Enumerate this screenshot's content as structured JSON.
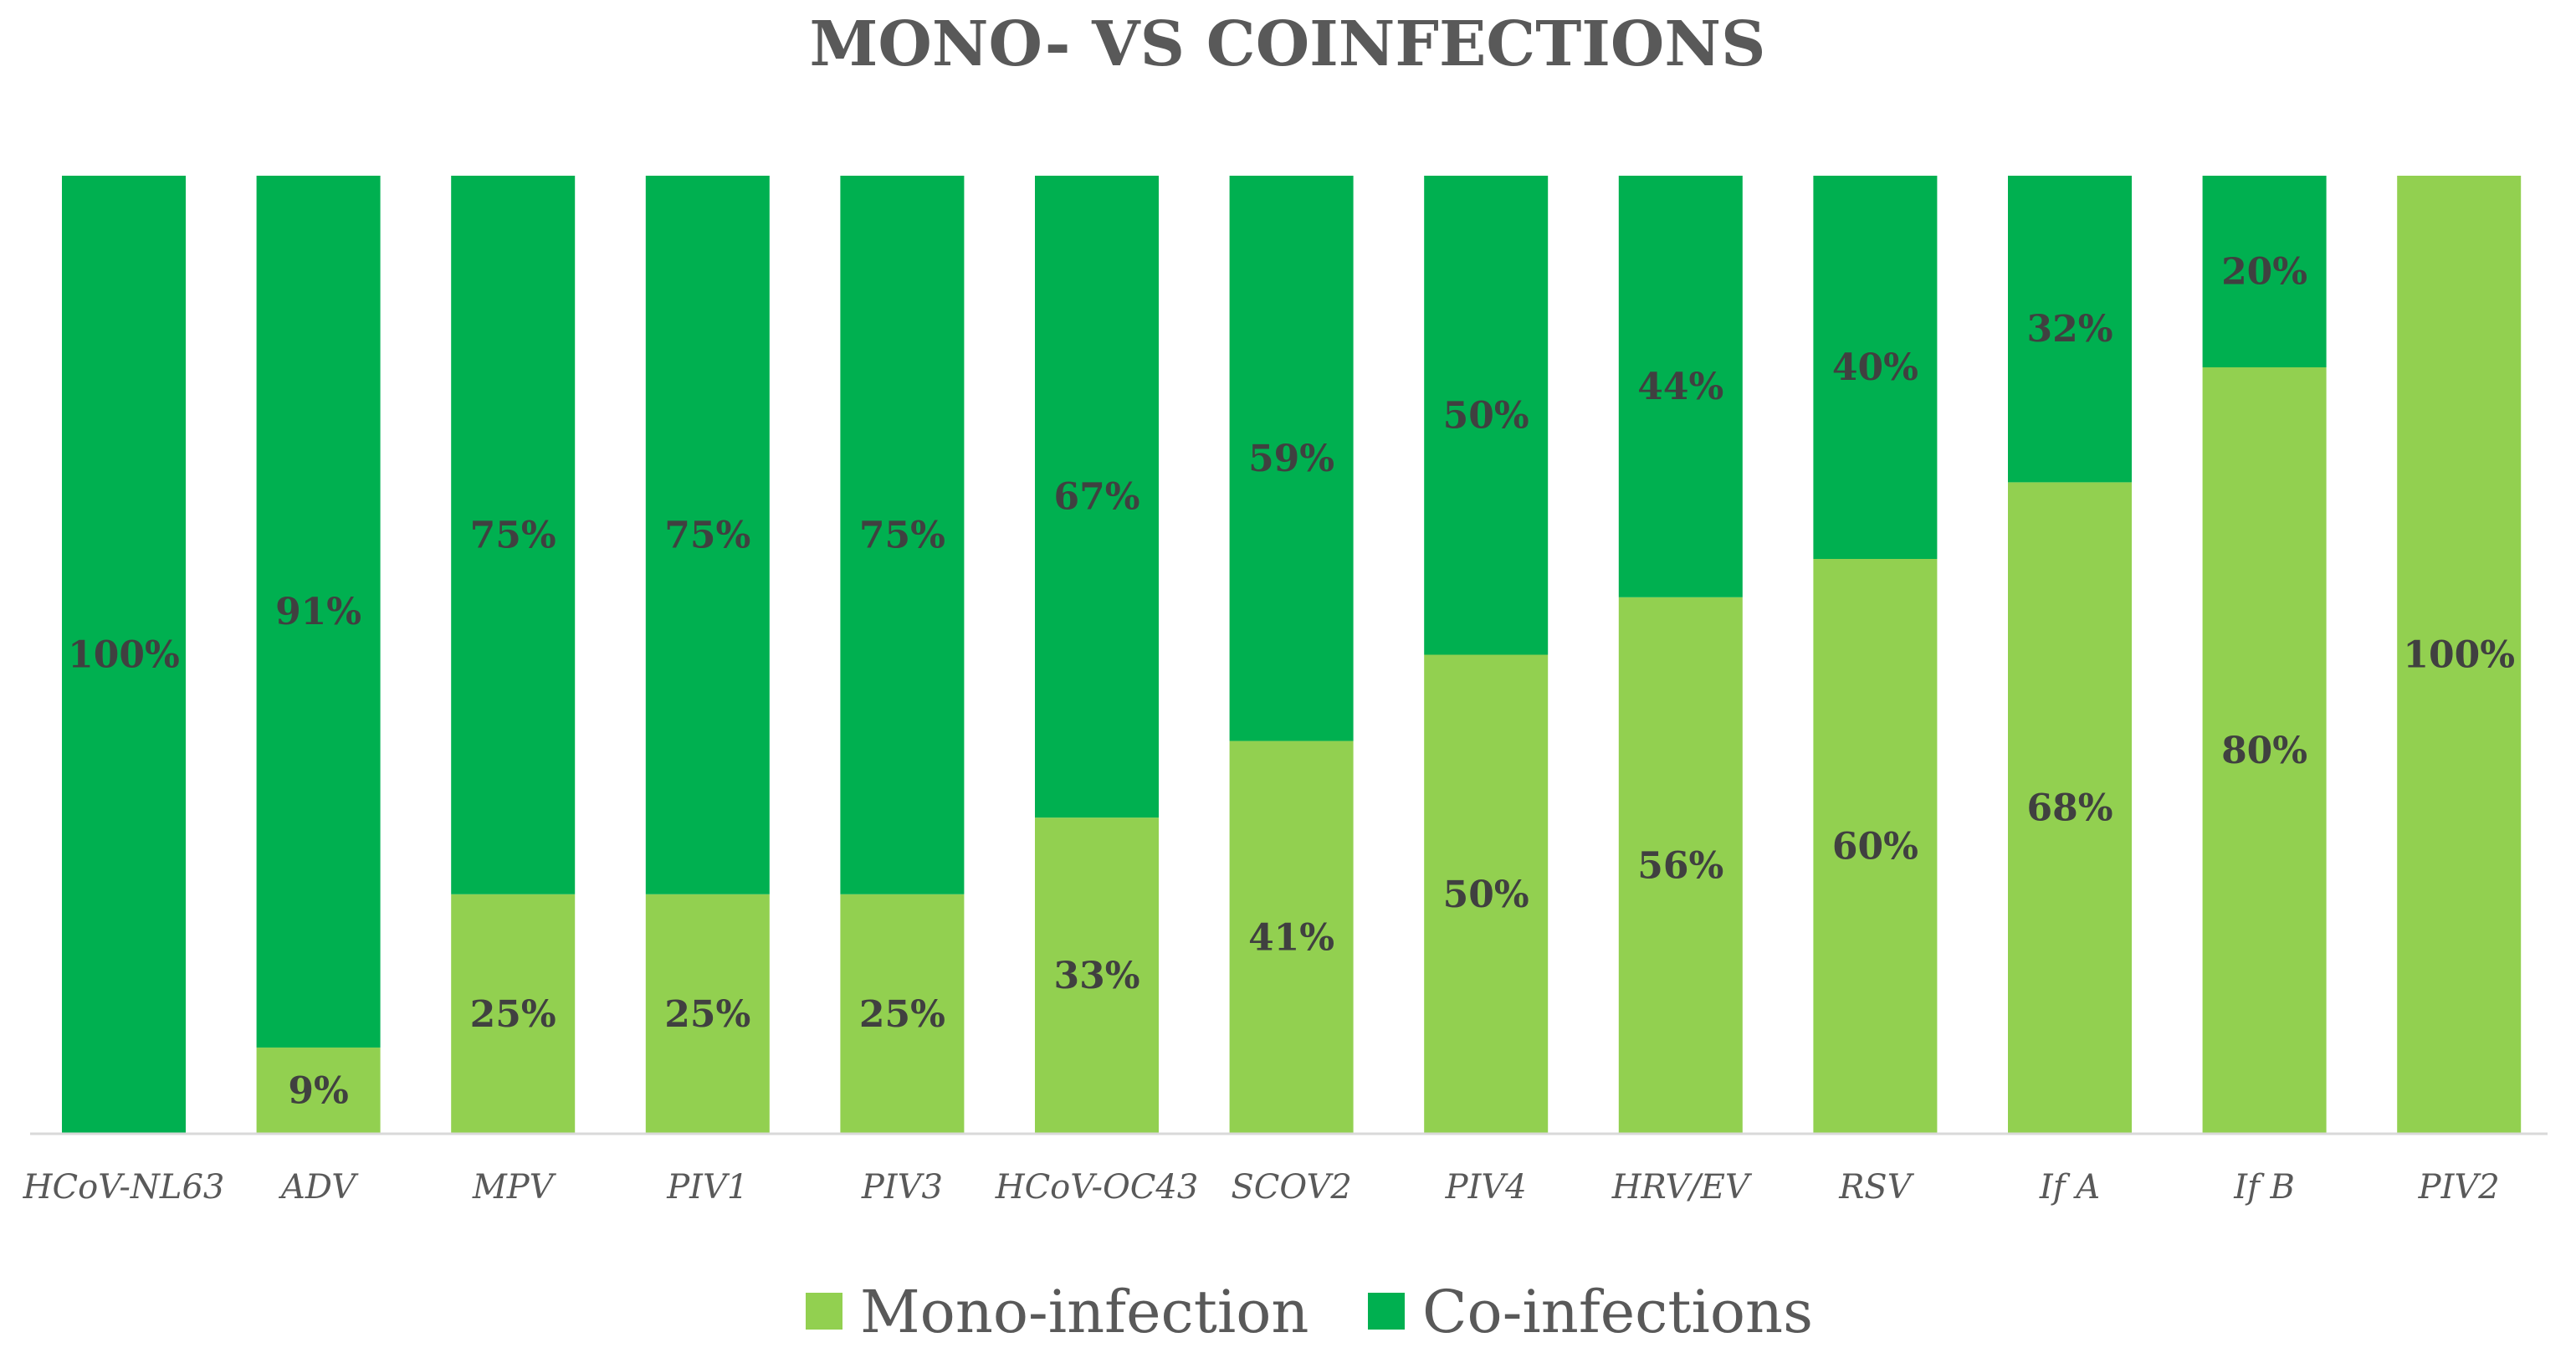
{
  "chart_data": {
    "type": "bar",
    "stacked": true,
    "percent_stacked": true,
    "title": "MONO- VS COINFECTIONS",
    "xlabel": "",
    "ylabel": "",
    "ylim": [
      0,
      100
    ],
    "grid": false,
    "legend_position": "bottom",
    "categories": [
      "HCoV-NL63",
      "ADV",
      "MPV",
      "PIV1",
      "PIV3",
      "HCoV-OC43",
      "SCOV2",
      "PIV4",
      "HRV/EV",
      "RSV",
      "If A",
      "If B",
      "PIV2"
    ],
    "series": [
      {
        "name": "Mono-infection",
        "color": "#92d050",
        "values": [
          0,
          9,
          25,
          25,
          25,
          33,
          41,
          50,
          56,
          60,
          68,
          80,
          100
        ],
        "labels": [
          "",
          "9%",
          "25%",
          "25%",
          "25%",
          "33%",
          "41%",
          "50%",
          "56%",
          "60%",
          "68%",
          "80%",
          "100%"
        ]
      },
      {
        "name": "Co-infections",
        "color": "#00b050",
        "values": [
          100,
          91,
          75,
          75,
          75,
          67,
          59,
          50,
          44,
          40,
          32,
          20,
          0
        ],
        "labels": [
          "100%",
          "91%",
          "75%",
          "75%",
          "75%",
          "67%",
          "59%",
          "50%",
          "44%",
          "40%",
          "32%",
          "20%",
          ""
        ]
      }
    ]
  }
}
